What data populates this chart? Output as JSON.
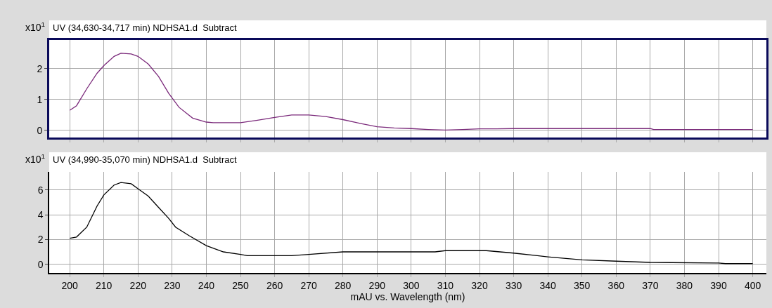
{
  "chart_data": [
    {
      "type": "line",
      "title": "UV (34,630-34,717 min) NDHSA1.d  Subtract",
      "ylabel": "x10$^{1}$",
      "xlim": [
        194,
        404
      ],
      "xticks": [
        200,
        210,
        220,
        230,
        240,
        250,
        260,
        270,
        280,
        290,
        300,
        310,
        320,
        330,
        340,
        350,
        360,
        370,
        380,
        390,
        400
      ],
      "ylim": [
        -0.23,
        2.93
      ],
      "yticks": [
        0,
        1,
        2
      ],
      "grid": true,
      "tick_labels": "y",
      "marker": "none",
      "line_style": "solid",
      "series": [
        {
          "color": "#7b2a7b",
          "x": [
            200,
            202,
            205,
            208,
            210,
            213,
            215,
            218,
            220,
            223,
            226,
            229,
            232,
            236,
            240,
            242,
            250,
            255,
            260,
            265,
            270,
            275,
            280,
            285,
            290,
            295,
            300,
            305,
            310,
            315,
            320,
            325,
            330,
            370,
            371,
            400
          ],
          "values": [
            0.65,
            0.8,
            1.35,
            1.85,
            2.1,
            2.4,
            2.5,
            2.48,
            2.4,
            2.15,
            1.75,
            1.2,
            0.75,
            0.4,
            0.27,
            0.25,
            0.25,
            0.33,
            0.42,
            0.5,
            0.5,
            0.45,
            0.35,
            0.23,
            0.12,
            0.08,
            0.06,
            0.03,
            0.01,
            0.03,
            0.05,
            0.05,
            0.06,
            0.06,
            0.03,
            0.03
          ]
        }
      ]
    },
    {
      "type": "line",
      "title": "UV (34,990-35,070 min) NDHSA1.d  Subtract",
      "ylabel": "x10$^{1}$",
      "xlabel": "mAU vs. Wavelength (nm)",
      "xlim": [
        194,
        404
      ],
      "xticks": [
        200,
        210,
        220,
        230,
        240,
        250,
        260,
        270,
        280,
        290,
        300,
        310,
        320,
        330,
        340,
        350,
        360,
        370,
        380,
        390,
        400
      ],
      "ylim": [
        -0.7,
        7.46
      ],
      "yticks": [
        0,
        2,
        4,
        6
      ],
      "grid": true,
      "marker": "none",
      "line_style": "solid",
      "series": [
        {
          "color": "#000000",
          "x": [
            200,
            202,
            205,
            208,
            210,
            213,
            215,
            218,
            220,
            223,
            226,
            229,
            231,
            235,
            240,
            245,
            250,
            252,
            265,
            270,
            280,
            300,
            307,
            310,
            322,
            330,
            340,
            350,
            360,
            370,
            390,
            392,
            400
          ],
          "values": [
            2.1,
            2.2,
            3.0,
            4.7,
            5.6,
            6.4,
            6.6,
            6.5,
            6.1,
            5.5,
            4.6,
            3.7,
            3.0,
            2.3,
            1.5,
            1.0,
            0.8,
            0.7,
            0.7,
            0.8,
            1.0,
            1.0,
            1.0,
            1.1,
            1.1,
            0.9,
            0.6,
            0.35,
            0.25,
            0.15,
            0.1,
            0.05,
            0.05
          ]
        }
      ]
    }
  ]
}
